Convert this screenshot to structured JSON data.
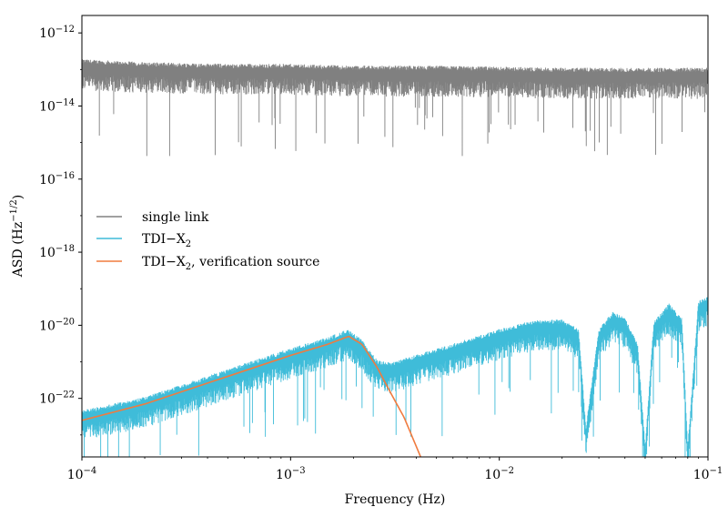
{
  "chart_data": {
    "type": "line",
    "xlabel": "Frequency (Hz)",
    "ylabel": "ASD (Hz",
    "ylabel_exponent": "−1/2",
    "ylabel_suffix": ")",
    "x_scale": "log",
    "y_scale": "log",
    "xlim": [
      0.0001,
      0.1
    ],
    "ylim": [
      2.5e-24,
      3e-12
    ],
    "grid": false,
    "legend_position": "center-left",
    "x_ticks": [
      {
        "value": 0.0001,
        "base": "10",
        "exp": "−4"
      },
      {
        "value": 0.001,
        "base": "10",
        "exp": "−3"
      },
      {
        "value": 0.01,
        "base": "10",
        "exp": "−2"
      },
      {
        "value": 0.1,
        "base": "10",
        "exp": "−1"
      }
    ],
    "y_ticks": [
      {
        "value": 1e-12,
        "base": "10",
        "exp": "−12"
      },
      {
        "value": 1e-14,
        "base": "10",
        "exp": "−14"
      },
      {
        "value": 1e-16,
        "base": "10",
        "exp": "−16"
      },
      {
        "value": 1e-18,
        "base": "10",
        "exp": "−18"
      },
      {
        "value": 1e-20,
        "base": "10",
        "exp": "−20"
      },
      {
        "value": 1e-22,
        "base": "10",
        "exp": "−22"
      }
    ],
    "series": [
      {
        "name": "single link",
        "color": "#808080",
        "x": [
          0.0001,
          0.0002,
          0.0005,
          0.001,
          0.002,
          0.005,
          0.01,
          0.02,
          0.05,
          0.1
        ],
        "y": [
          1.2e-13,
          1e-13,
          9e-14,
          9e-14,
          8e-14,
          8e-14,
          7.5e-14,
          7e-14,
          7e-14,
          7e-14
        ]
      },
      {
        "name": "TDI−X",
        "name_subscript": "2",
        "color": "#3fbcd9",
        "x": [
          0.0001,
          0.0002,
          0.0005,
          0.001,
          0.0015,
          0.0019,
          0.0022,
          0.0026,
          0.003,
          0.004,
          0.006,
          0.01,
          0.015,
          0.02,
          0.024,
          0.026,
          0.03,
          0.035,
          0.04,
          0.046,
          0.05,
          0.055,
          0.065,
          0.075,
          0.08,
          0.09,
          0.1
        ],
        "y": [
          3e-23,
          7e-23,
          4e-22,
          1.5e-21,
          3e-21,
          5e-21,
          2.5e-21,
          7e-22,
          6e-22,
          1e-21,
          2e-21,
          5e-21,
          9e-21,
          9e-21,
          5e-21,
          1e-23,
          5e-21,
          1.5e-20,
          1e-20,
          2e-21,
          3e-24,
          8e-21,
          2.5e-20,
          1e-20,
          3e-24,
          3e-20,
          4e-20
        ]
      },
      {
        "name": "TDI−X",
        "name_subscript": "2",
        "name_suffix": ", verification source",
        "color": "#f07b3f",
        "x": [
          0.0001,
          0.0002,
          0.0005,
          0.001,
          0.0015,
          0.0019,
          0.0022,
          0.0026,
          0.003,
          0.0035,
          0.0042
        ],
        "y": [
          2.5e-23,
          7e-23,
          4e-22,
          1.5e-21,
          3e-21,
          5e-21,
          3e-21,
          7e-22,
          1.5e-22,
          3e-23,
          2.5e-24
        ]
      }
    ]
  }
}
